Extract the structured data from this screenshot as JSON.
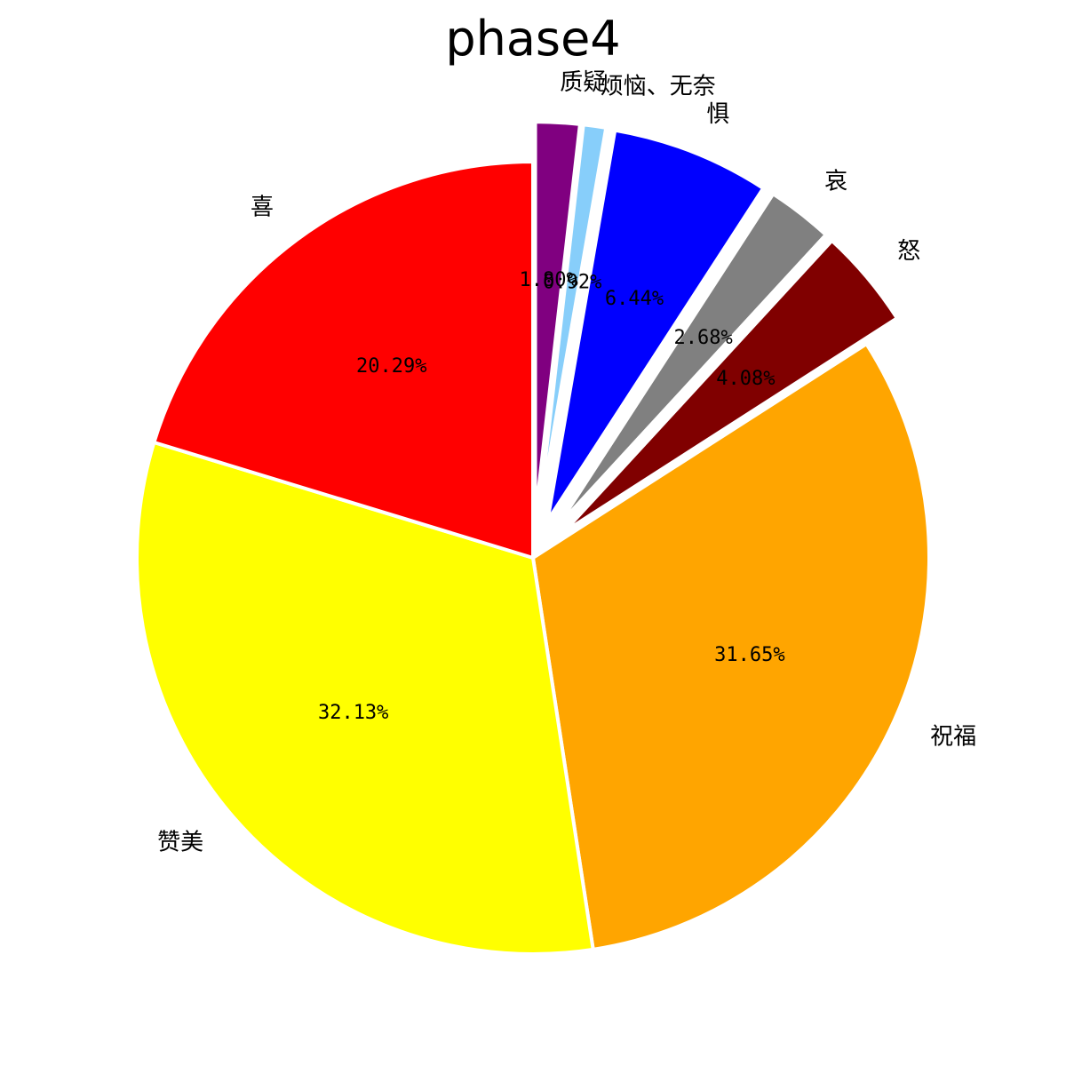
{
  "chart_data": {
    "type": "pie",
    "title": "phase4",
    "start_angle_deg": 90,
    "direction": "clockwise",
    "slices": [
      {
        "label": "质疑",
        "pct_label": "1.80%",
        "value": 1.8,
        "color": "#800080",
        "exploded": true
      },
      {
        "label": "烦恼、无奈",
        "pct_label": "0.92%",
        "value": 0.92,
        "color": "#87CEFA",
        "exploded": true
      },
      {
        "label": "惧",
        "pct_label": "6.44%",
        "value": 6.44,
        "color": "#0000FF",
        "exploded": true
      },
      {
        "label": "哀",
        "pct_label": "2.68%",
        "value": 2.68,
        "color": "#808080",
        "exploded": true
      },
      {
        "label": "怒",
        "pct_label": "4.08%",
        "value": 4.08,
        "color": "#800000",
        "exploded": true
      },
      {
        "label": "祝福",
        "pct_label": "31.65%",
        "value": 31.65,
        "color": "#FFA500",
        "exploded": false
      },
      {
        "label": "赞美",
        "pct_label": "32.13%",
        "value": 32.13,
        "color": "#FFFF00",
        "exploded": false
      },
      {
        "label": "喜",
        "pct_label": "20.29%",
        "value": 20.29,
        "color": "#FF0000",
        "exploded": false
      }
    ]
  }
}
